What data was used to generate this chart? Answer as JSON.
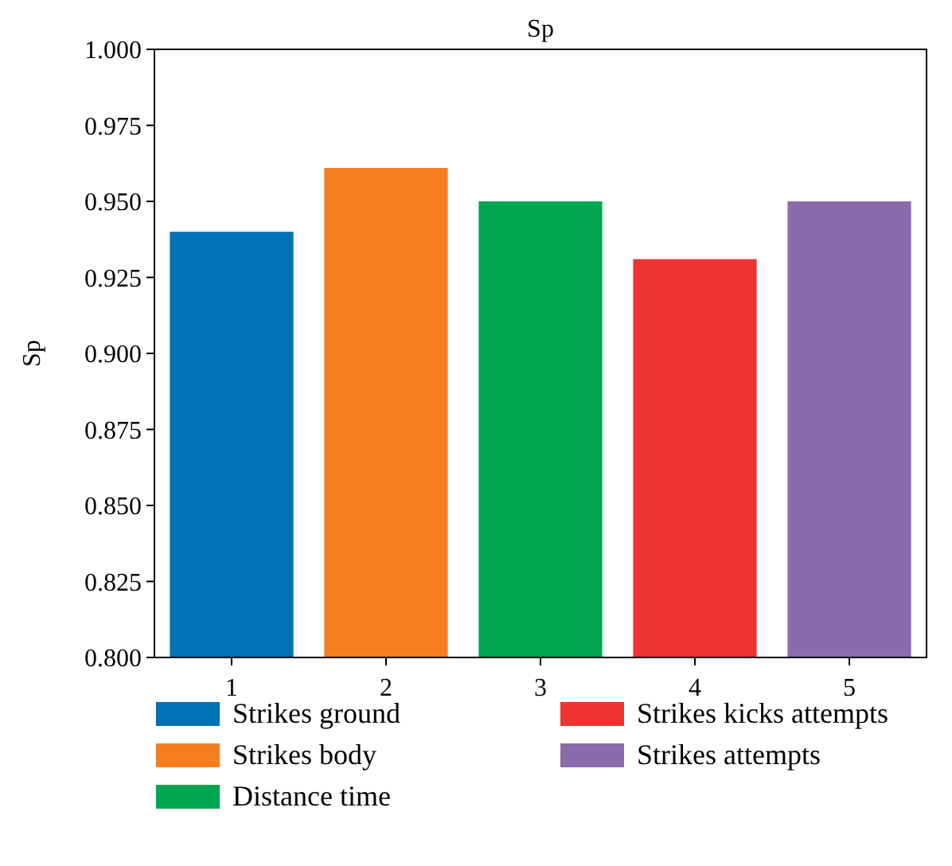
{
  "chart_data": {
    "type": "bar",
    "title": "Sp",
    "ylabel": "Sp",
    "categories": [
      "1",
      "2",
      "3",
      "4",
      "5"
    ],
    "series": [
      {
        "name": "Strikes ground",
        "color": "#0071b2",
        "values": [
          0.94,
          null,
          null,
          null,
          null
        ]
      },
      {
        "name": "Strikes body",
        "color": "#f57f20",
        "values": [
          null,
          0.961,
          null,
          null,
          null
        ]
      },
      {
        "name": "Distance time",
        "color": "#00a651",
        "values": [
          null,
          null,
          0.95,
          null,
          null
        ]
      },
      {
        "name": "Strikes kicks attempts",
        "color": "#ee3431",
        "values": [
          null,
          null,
          null,
          0.931,
          null
        ]
      },
      {
        "name": "Strikes attempts",
        "color": "#8c6bad",
        "values": [
          null,
          null,
          null,
          null,
          0.95
        ]
      }
    ],
    "ylim": [
      0.8,
      1.0
    ],
    "yticks": [
      {
        "value": 0.8,
        "label": "0.800"
      },
      {
        "value": 0.825,
        "label": "0.825"
      },
      {
        "value": 0.85,
        "label": "0.850"
      },
      {
        "value": 0.875,
        "label": "0.875"
      },
      {
        "value": 0.9,
        "label": "0.900"
      },
      {
        "value": 0.925,
        "label": "0.925"
      },
      {
        "value": 0.95,
        "label": "0.950"
      },
      {
        "value": 0.975,
        "label": "0.975"
      },
      {
        "value": 1.0,
        "label": "1.000"
      }
    ],
    "grid": false,
    "legend": "bottom"
  }
}
